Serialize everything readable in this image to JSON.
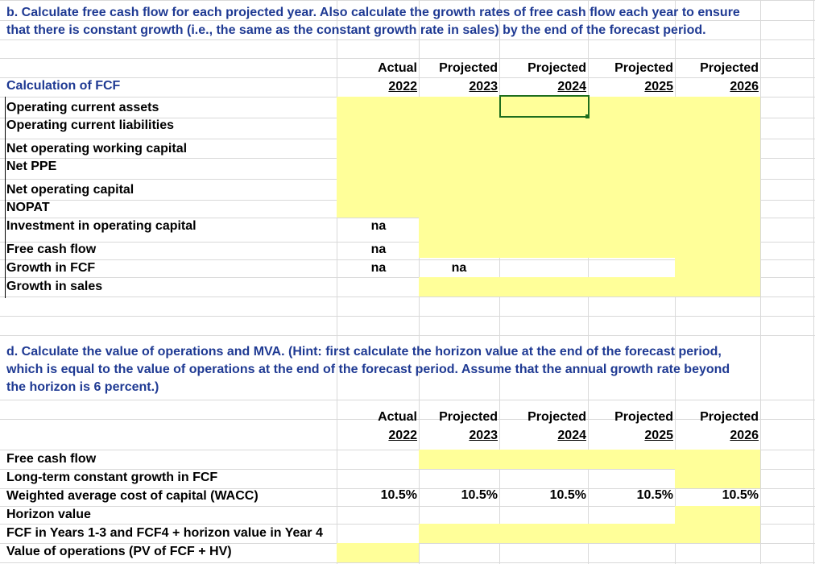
{
  "sectionB": {
    "text": "b. Calculate free cash flow for each projected year. Also calculate the growth rates of free cash flow each year to ensure that there is constant growth (i.e., the same as the constant growth rate in sales) by the end of the forecast period.",
    "title": "Calculation of FCF",
    "headers": [
      {
        "top": "Actual",
        "year": "2022"
      },
      {
        "top": "Projected",
        "year": "2023"
      },
      {
        "top": "Projected",
        "year": "2024"
      },
      {
        "top": "Projected",
        "year": "2025"
      },
      {
        "top": "Projected",
        "year": "2026"
      }
    ],
    "rows": [
      "Operating current assets",
      "Operating current liabilities",
      "Net operating working capital",
      "Net PPE",
      "Net operating capital",
      "NOPAT",
      "Investment in operating capital",
      "Free cash flow",
      "Growth in FCF",
      "Growth in sales"
    ],
    "na": "na"
  },
  "sectionD": {
    "text": "d. Calculate the value of operations and MVA. (Hint: first calculate the horizon value at the end of the forecast period, which is equal to the value of operations at the end of the forecast period. Assume that the annual growth rate beyond the horizon is 6 percent.)",
    "headers": [
      {
        "top": "Actual",
        "year": "2022"
      },
      {
        "top": "Projected",
        "year": "2023"
      },
      {
        "top": "Projected",
        "year": "2024"
      },
      {
        "top": "Projected",
        "year": "2025"
      },
      {
        "top": "Projected",
        "year": "2026"
      }
    ],
    "rows": [
      "Free cash flow",
      "Long-term constant growth in FCF",
      "Weighted average cost of capital (WACC)",
      "Horizon value",
      "FCF in Years 1-3 and FCF4 + horizon value in Year 4",
      "Value of operations (PV of FCF + HV)"
    ],
    "wacc": [
      "10.5%",
      "10.5%",
      "10.5%",
      "10.5%",
      "10.5%"
    ]
  },
  "colors": {
    "highlight": "#ffff99",
    "text_blue": "#1f3a93",
    "gridline": "#d9d9d9",
    "selection": "#1e6e1e"
  }
}
